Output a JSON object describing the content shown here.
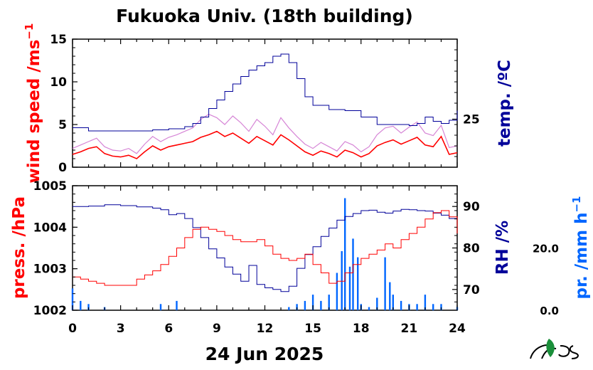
{
  "title": "Fukuoka Univ. (18th building)",
  "date_label": "24 Jun 2025",
  "colors": {
    "wind": "#ff0000",
    "wind_raw": "#cc66cc",
    "temp": "#000099",
    "pressure": "#ff0000",
    "rh": "#000099",
    "precip": "#0066ff"
  },
  "chart_data": [
    {
      "type": "line",
      "panel": "top",
      "x_ticks": [
        "0",
        "3",
        "6",
        "9",
        "12",
        "15",
        "18",
        "21",
        "24"
      ],
      "xlim": [
        0,
        24
      ],
      "left_axis": {
        "label": "wind speed /ms",
        "label_sup": "−1",
        "ticks": [
          "0",
          "5",
          "10",
          "15"
        ],
        "ylim": [
          0,
          15
        ]
      },
      "right_axis": {
        "label": "temp. /ºC",
        "ticks": [
          "25"
        ],
        "ylim": [
          20.5,
          32.5
        ]
      },
      "series": [
        {
          "axis": "left",
          "style": "mean",
          "x": [
            0,
            0.5,
            1,
            1.5,
            2,
            2.5,
            3,
            3.5,
            4,
            4.5,
            5,
            5.5,
            6,
            6.5,
            7,
            7.5,
            8,
            8.5,
            9,
            9.5,
            10,
            10.5,
            11,
            11.5,
            12,
            12.5,
            13,
            13.5,
            14,
            14.5,
            15,
            15.5,
            16,
            16.5,
            17,
            17.5,
            18,
            18.5,
            19,
            19.5,
            20,
            20.5,
            21,
            21.5,
            22,
            22.5,
            23,
            23.5,
            24
          ],
          "y": [
            1.5,
            1.8,
            2.2,
            2.4,
            1.6,
            1.3,
            1.2,
            1.4,
            1.0,
            1.8,
            2.5,
            2.0,
            2.4,
            2.6,
            2.8,
            3.0,
            3.5,
            3.8,
            4.2,
            3.6,
            4.0,
            3.4,
            2.8,
            3.6,
            3.1,
            2.6,
            3.8,
            3.2,
            2.5,
            1.8,
            1.4,
            1.9,
            1.6,
            1.2,
            2.0,
            1.7,
            1.2,
            1.6,
            2.5,
            2.9,
            3.2,
            2.7,
            3.1,
            3.5,
            2.6,
            2.4,
            3.6,
            1.5,
            1.7
          ]
        },
        {
          "axis": "left",
          "style": "raw",
          "x": [
            0,
            0.5,
            1,
            1.5,
            2,
            2.5,
            3,
            3.5,
            4,
            4.5,
            5,
            5.5,
            6,
            6.5,
            7,
            7.5,
            8,
            8.5,
            9,
            9.5,
            10,
            10.5,
            11,
            11.5,
            12,
            12.5,
            13,
            13.5,
            14,
            14.5,
            15,
            15.5,
            16,
            16.5,
            17,
            17.5,
            18,
            18.5,
            19,
            19.5,
            20,
            20.5,
            21,
            21.5,
            22,
            22.5,
            23,
            23.5,
            24
          ],
          "y": [
            2.2,
            2.6,
            3.0,
            3.4,
            2.4,
            2.0,
            1.9,
            2.2,
            1.6,
            2.7,
            3.6,
            3.0,
            3.5,
            3.8,
            4.2,
            4.6,
            5.6,
            6.2,
            5.8,
            5.0,
            6.0,
            5.2,
            4.2,
            5.6,
            4.8,
            3.8,
            5.8,
            4.6,
            3.6,
            2.7,
            2.2,
            2.9,
            2.4,
            1.9,
            3.0,
            2.6,
            1.8,
            2.4,
            3.8,
            4.6,
            4.8,
            4.0,
            4.7,
            5.3,
            4.0,
            3.7,
            4.9,
            2.3,
            2.5
          ]
        },
        {
          "axis": "right",
          "style": "temp",
          "x": [
            0,
            1,
            2,
            3,
            4,
            5,
            6,
            7,
            7.5,
            8,
            8.5,
            9,
            9.5,
            10,
            10.5,
            11,
            11.5,
            12,
            12.5,
            13,
            13.5,
            14,
            14.5,
            15,
            16,
            17,
            18,
            19,
            20,
            21,
            21.5,
            22,
            22.5,
            23,
            23.5,
            24
          ],
          "y": [
            24.2,
            23.9,
            23.9,
            23.9,
            23.9,
            24.0,
            24.1,
            24.3,
            24.6,
            25.2,
            26.0,
            26.8,
            27.6,
            28.3,
            29.0,
            29.6,
            30.0,
            30.3,
            30.9,
            31.1,
            30.3,
            28.8,
            27.1,
            26.3,
            25.9,
            25.8,
            25.2,
            24.5,
            24.5,
            24.4,
            24.6,
            25.2,
            24.8,
            24.6,
            24.9,
            25.8
          ]
        }
      ]
    },
    {
      "type": "line",
      "panel": "bottom",
      "x_ticks": [
        "0",
        "3",
        "6",
        "9",
        "12",
        "15",
        "18",
        "21",
        "24"
      ],
      "xlim": [
        0,
        24
      ],
      "left_axis": {
        "label": "press. /hPa",
        "ticks": [
          "1002",
          "1003",
          "1004",
          "1005"
        ],
        "ylim": [
          1002,
          1005
        ]
      },
      "right_axis": {
        "label": "RH /%",
        "ticks": [
          "70",
          "80",
          "90"
        ],
        "ylim": [
          65,
          95
        ]
      },
      "far_right_axis": {
        "label": "pr. /mm h",
        "label_sup": "−1",
        "ticks": [
          "0.0",
          "20.0"
        ],
        "ylim": [
          0,
          40
        ]
      },
      "series": [
        {
          "axis": "left",
          "style": "pressure",
          "x": [
            0,
            0.5,
            1,
            1.5,
            2,
            2.5,
            3,
            3.5,
            4,
            4.5,
            5,
            5.5,
            6,
            6.5,
            7,
            7.5,
            8,
            8.5,
            9,
            9.5,
            10,
            10.5,
            11,
            11.5,
            12,
            12.5,
            13,
            13.5,
            14,
            14.5,
            15,
            15.5,
            16,
            16.5,
            17,
            17.5,
            18,
            18.5,
            19,
            19.5,
            20,
            20.5,
            21,
            21.5,
            22,
            22.5,
            23,
            23.5,
            24
          ],
          "y": [
            1002.8,
            1002.75,
            1002.7,
            1002.65,
            1002.6,
            1002.6,
            1002.6,
            1002.6,
            1002.75,
            1002.85,
            1002.95,
            1003.1,
            1003.3,
            1003.5,
            1003.75,
            1003.95,
            1004.0,
            1003.95,
            1003.9,
            1003.8,
            1003.7,
            1003.65,
            1003.65,
            1003.7,
            1003.55,
            1003.35,
            1003.25,
            1003.2,
            1003.25,
            1003.35,
            1003.1,
            1002.9,
            1002.65,
            1002.7,
            1002.9,
            1003.1,
            1003.25,
            1003.35,
            1003.45,
            1003.6,
            1003.5,
            1003.7,
            1003.85,
            1004.0,
            1004.2,
            1004.35,
            1004.4,
            1004.25,
            1003.85
          ]
        },
        {
          "axis": "right",
          "style": "rh",
          "x": [
            0,
            1,
            2,
            3,
            4,
            5,
            5.5,
            6,
            6.5,
            7,
            7.5,
            8,
            8.5,
            9,
            9.5,
            10,
            10.5,
            11,
            11.5,
            12,
            12.5,
            13,
            13.5,
            14,
            14.5,
            15,
            15.5,
            16,
            16.5,
            17,
            17.5,
            18,
            18.5,
            19,
            19.5,
            20,
            20.5,
            21,
            21.5,
            22,
            22.5,
            23,
            23.5,
            24
          ],
          "y": [
            90.0,
            90.1,
            90.4,
            90.2,
            89.9,
            89.6,
            89.2,
            88.0,
            88.3,
            87.1,
            84.9,
            82.5,
            79.8,
            77.6,
            75.4,
            73.7,
            72.0,
            75.8,
            71.2,
            70.4,
            70.0,
            69.5,
            70.8,
            75.1,
            78.4,
            80.3,
            82.8,
            84.8,
            86.7,
            87.6,
            88.3,
            89.0,
            89.1,
            88.6,
            88.4,
            88.9,
            89.3,
            89.2,
            89.0,
            88.9,
            88.4,
            87.9,
            87.1,
            84.6
          ]
        },
        {
          "axis": "far_right",
          "style": "precip-bars",
          "x": [
            0,
            0.5,
            1,
            2,
            5.5,
            6.5,
            13.5,
            14.0,
            14.5,
            15.0,
            15.5,
            16.0,
            16.5,
            16.8,
            17.0,
            17.3,
            17.5,
            17.8,
            18.0,
            18.5,
            19.0,
            19.5,
            19.8,
            20.0,
            20.5,
            21.0,
            21.5,
            22.0,
            22.5,
            23.0,
            24.0
          ],
          "y": [
            7,
            3,
            2,
            1,
            2,
            3,
            1,
            2,
            3,
            5,
            3,
            5,
            12,
            19,
            36,
            14,
            23,
            17,
            2,
            1,
            4,
            17,
            9,
            5,
            3,
            2,
            2,
            5,
            2,
            2,
            1
          ]
        }
      ]
    }
  ]
}
